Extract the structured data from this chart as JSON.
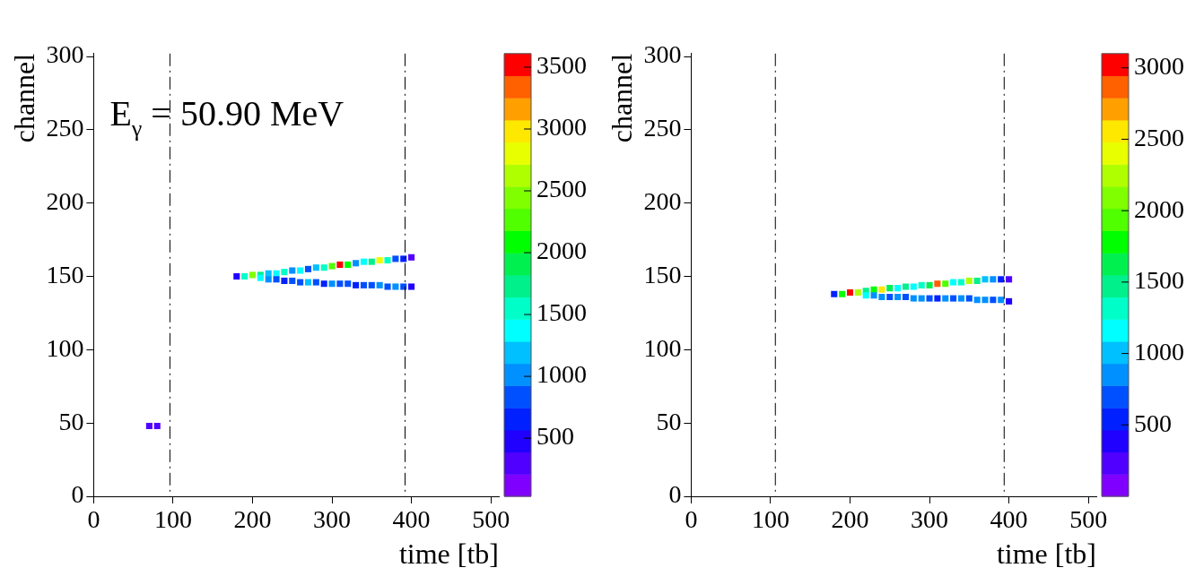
{
  "chart_data": [
    {
      "type": "scatter",
      "xlabel": "time [tb]",
      "ylabel": "channel",
      "marker": "square",
      "xlim": [
        0,
        510
      ],
      "ylim": [
        0,
        302
      ],
      "xticks": [
        0,
        100,
        200,
        300,
        400,
        500
      ],
      "yticks": [
        0,
        50,
        100,
        150,
        200,
        250,
        300
      ],
      "clim": [
        30,
        3610
      ],
      "cticks": [
        500,
        1000,
        1500,
        2000,
        2500,
        3000,
        3500
      ],
      "annotations": [
        "E$_{γ}$ = 50.90 MeV"
      ],
      "ref_lines": [
        {
          "axis": "x",
          "value": 96,
          "line_style": "dashdot"
        },
        {
          "axis": "x",
          "value": 392,
          "line_style": "dashdot"
        }
      ],
      "x": [
        70,
        80,
        180,
        190,
        200,
        210,
        220,
        230,
        240,
        250,
        260,
        270,
        280,
        290,
        300,
        310,
        320,
        330,
        340,
        350,
        360,
        370,
        380,
        390,
        400,
        210,
        220,
        230,
        240,
        250,
        260,
        270,
        280,
        290,
        300,
        310,
        320,
        330,
        340,
        350,
        360,
        370,
        380,
        390,
        400
      ],
      "values": [
        48,
        48,
        150,
        150,
        151,
        151,
        152,
        152,
        153,
        154,
        154,
        155,
        156,
        156,
        157,
        158,
        158,
        159,
        160,
        160,
        161,
        161,
        162,
        162,
        163,
        149,
        148,
        148,
        147,
        147,
        146,
        146,
        146,
        145,
        145,
        145,
        145,
        144,
        144,
        144,
        144,
        143,
        143,
        143,
        143
      ],
      "cvalues": [
        300,
        300,
        400,
        1600,
        2500,
        1800,
        1200,
        1300,
        1600,
        1100,
        1400,
        900,
        1200,
        1500,
        2200,
        3500,
        2000,
        1100,
        1300,
        1800,
        2800,
        1500,
        900,
        700,
        300,
        1400,
        1100,
        900,
        700,
        800,
        900,
        1200,
        800,
        700,
        1000,
        800,
        900,
        700,
        800,
        900,
        1100,
        900,
        1000,
        800,
        400
      ]
    },
    {
      "type": "scatter",
      "xlabel": "time [tb]",
      "ylabel": "channel",
      "marker": "square",
      "xlim": [
        0,
        510
      ],
      "ylim": [
        0,
        302
      ],
      "xticks": [
        0,
        100,
        200,
        300,
        400,
        500
      ],
      "yticks": [
        0,
        50,
        100,
        150,
        200,
        250,
        300
      ],
      "clim": [
        0,
        3100
      ],
      "cticks": [
        500,
        1000,
        1500,
        2000,
        2500,
        3000
      ],
      "ref_lines": [
        {
          "axis": "x",
          "value": 106,
          "line_style": "dashdot"
        },
        {
          "axis": "x",
          "value": 394,
          "line_style": "dashdot"
        }
      ],
      "x": [
        180,
        190,
        200,
        210,
        220,
        230,
        240,
        250,
        260,
        270,
        280,
        290,
        300,
        310,
        320,
        330,
        340,
        350,
        360,
        370,
        380,
        390,
        400,
        220,
        230,
        240,
        250,
        260,
        270,
        280,
        290,
        300,
        310,
        320,
        330,
        340,
        350,
        360,
        370,
        380,
        390,
        400
      ],
      "values": [
        138,
        138,
        139,
        139,
        140,
        141,
        141,
        142,
        142,
        143,
        143,
        144,
        144,
        145,
        145,
        146,
        146,
        147,
        147,
        148,
        148,
        148,
        148,
        137,
        137,
        136,
        136,
        136,
        136,
        135,
        135,
        135,
        135,
        135,
        135,
        135,
        135,
        134,
        134,
        134,
        134,
        133
      ],
      "cvalues": [
        500,
        1800,
        3000,
        2200,
        1500,
        1800,
        2600,
        1600,
        1200,
        1400,
        1100,
        1300,
        1600,
        2800,
        1900,
        1100,
        1300,
        2200,
        1500,
        1000,
        900,
        600,
        300,
        1100,
        900,
        800,
        700,
        800,
        700,
        900,
        800,
        700,
        600,
        800,
        700,
        800,
        700,
        900,
        800,
        700,
        800,
        400
      ]
    }
  ]
}
